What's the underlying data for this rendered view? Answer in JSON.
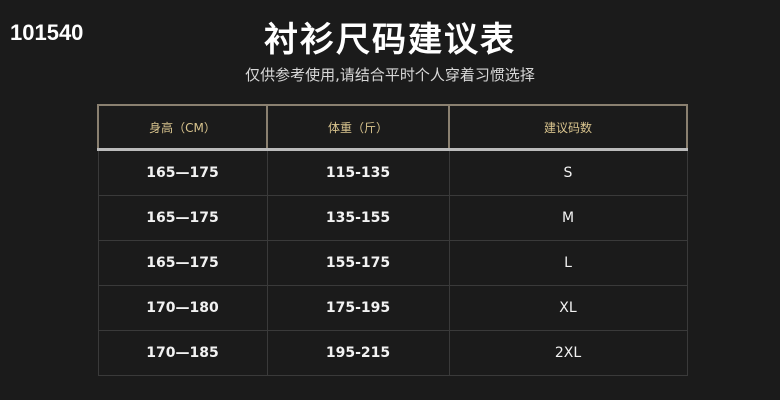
{
  "watermark": "101540",
  "title": "衬衫尺码建议表",
  "subtitle": "仅供参考使用,请结合平时个人穿着习惯选择",
  "table": {
    "headers": [
      "身高（CM）",
      "体重（斤）",
      "建议码数"
    ],
    "rows": [
      [
        "165—175",
        "115-135",
        "S"
      ],
      [
        "165—175",
        "135-155",
        "M"
      ],
      [
        "165—175",
        "155-175",
        "L"
      ],
      [
        "170—180",
        "175-195",
        "XL"
      ],
      [
        "170—185",
        "195-215",
        "2XL"
      ]
    ]
  }
}
